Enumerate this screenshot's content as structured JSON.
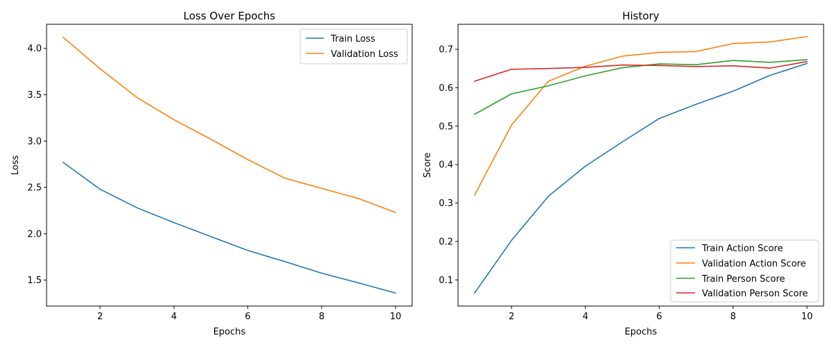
{
  "chart_data": [
    {
      "type": "line",
      "title": "Loss Over Epochs",
      "xlabel": "Epochs",
      "ylabel": "Loss",
      "xlim": [
        0.55,
        10.45
      ],
      "ylim": [
        1.22,
        4.26
      ],
      "xticks": [
        2,
        4,
        6,
        8,
        10
      ],
      "yticks": [
        1.5,
        2.0,
        2.5,
        3.0,
        3.5,
        4.0
      ],
      "ytick_labels": [
        "1.5",
        "2.0",
        "2.5",
        "3.0",
        "3.5",
        "4.0"
      ],
      "grid": false,
      "legend_position": "upper right",
      "x": [
        1,
        2,
        3,
        4,
        5,
        6,
        7,
        8,
        9,
        10
      ],
      "series": [
        {
          "name": "Train Loss",
          "color": "#1f77b4",
          "values": [
            2.77,
            2.48,
            2.28,
            2.12,
            1.97,
            1.82,
            1.7,
            1.575,
            1.47,
            1.36
          ]
        },
        {
          "name": "Validation Loss",
          "color": "#ff7f0e",
          "values": [
            4.12,
            3.78,
            3.47,
            3.23,
            3.02,
            2.8,
            2.6,
            2.49,
            2.38,
            2.23
          ]
        }
      ]
    },
    {
      "type": "line",
      "title": "History",
      "xlabel": "Epochs",
      "ylabel": "Score",
      "xlim": [
        0.55,
        10.45
      ],
      "ylim": [
        0.032,
        0.765
      ],
      "xticks": [
        2,
        4,
        6,
        8,
        10
      ],
      "yticks": [
        0.1,
        0.2,
        0.3,
        0.4,
        0.5,
        0.6,
        0.7
      ],
      "ytick_labels": [
        "0.1",
        "0.2",
        "0.3",
        "0.4",
        "0.5",
        "0.6",
        "0.7"
      ],
      "grid": false,
      "legend_position": "lower right",
      "x": [
        1,
        2,
        3,
        4,
        5,
        6,
        7,
        8,
        9,
        10
      ],
      "series": [
        {
          "name": "Train Action Score",
          "color": "#1f77b4",
          "values": [
            0.066,
            0.203,
            0.318,
            0.396,
            0.459,
            0.52,
            0.557,
            0.591,
            0.632,
            0.663
          ]
        },
        {
          "name": "Validation Action Score",
          "color": "#ff7f0e",
          "values": [
            0.321,
            0.503,
            0.617,
            0.656,
            0.682,
            0.692,
            0.694,
            0.715,
            0.719,
            0.733
          ]
        },
        {
          "name": "Train Person Score",
          "color": "#2ca02c",
          "values": [
            0.531,
            0.584,
            0.605,
            0.631,
            0.652,
            0.662,
            0.66,
            0.671,
            0.666,
            0.673
          ]
        },
        {
          "name": "Validation Person Score",
          "color": "#d62728",
          "values": [
            0.617,
            0.648,
            0.65,
            0.653,
            0.659,
            0.658,
            0.655,
            0.657,
            0.651,
            0.668
          ]
        }
      ]
    }
  ]
}
